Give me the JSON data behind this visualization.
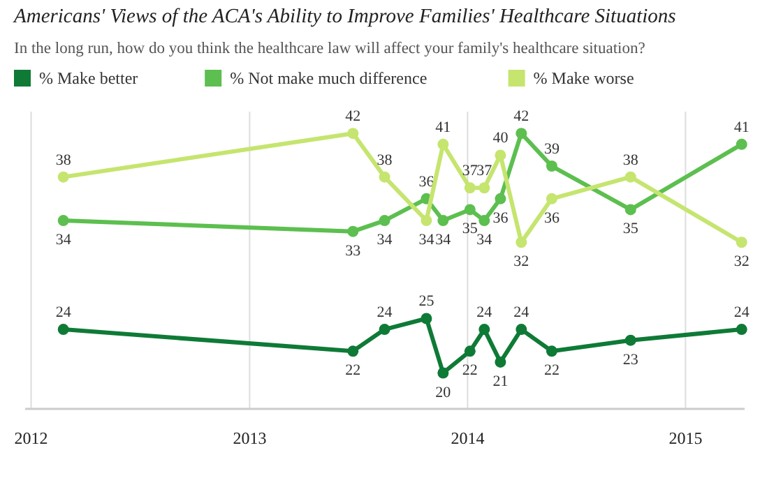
{
  "chart_data": {
    "type": "line",
    "title": "Americans' Views of the ACA's Ability to Improve Families' Healthcare Situations",
    "subtitle": "In the long run, how do you think the healthcare law will affect your family's healthcare situation?",
    "x": [
      "2012-02-24",
      "2013-06-23",
      "2013-08-15",
      "2013-10-24",
      "2013-11-21",
      "2014-01-05",
      "2014-01-29",
      "2014-02-25",
      "2014-04-01",
      "2014-05-22",
      "2014-10-01",
      "2015-04-05"
    ],
    "series": [
      {
        "name": "% Make better",
        "color": "#0e7a36",
        "values": [
          24,
          22,
          24,
          25,
          20,
          22,
          24,
          21,
          24,
          22,
          23,
          24
        ]
      },
      {
        "name": "% Not make much difference",
        "color": "#5cbf4f",
        "values": [
          34,
          33,
          34,
          36,
          34,
          35,
          34,
          36,
          42,
          39,
          35,
          41
        ]
      },
      {
        "name": "% Make worse",
        "color": "#c5e56f",
        "values": [
          38,
          42,
          38,
          34,
          41,
          37,
          37,
          40,
          32,
          36,
          38,
          32
        ]
      }
    ],
    "xlim": [
      "2011-12-22",
      "2015-04-10"
    ],
    "ylim": [
      16.7,
      44
    ],
    "xticks": [
      {
        "value": "2012-01-01",
        "label": "2012"
      },
      {
        "value": "2013-01-01",
        "label": "2013"
      },
      {
        "value": "2014-01-01",
        "label": "2014"
      },
      {
        "value": "2015-01-01",
        "label": "2015"
      }
    ],
    "tick_labels": "x",
    "grid": "x",
    "legend": "top left",
    "marker": "circle",
    "line_style": "solid",
    "data_labels": true
  }
}
